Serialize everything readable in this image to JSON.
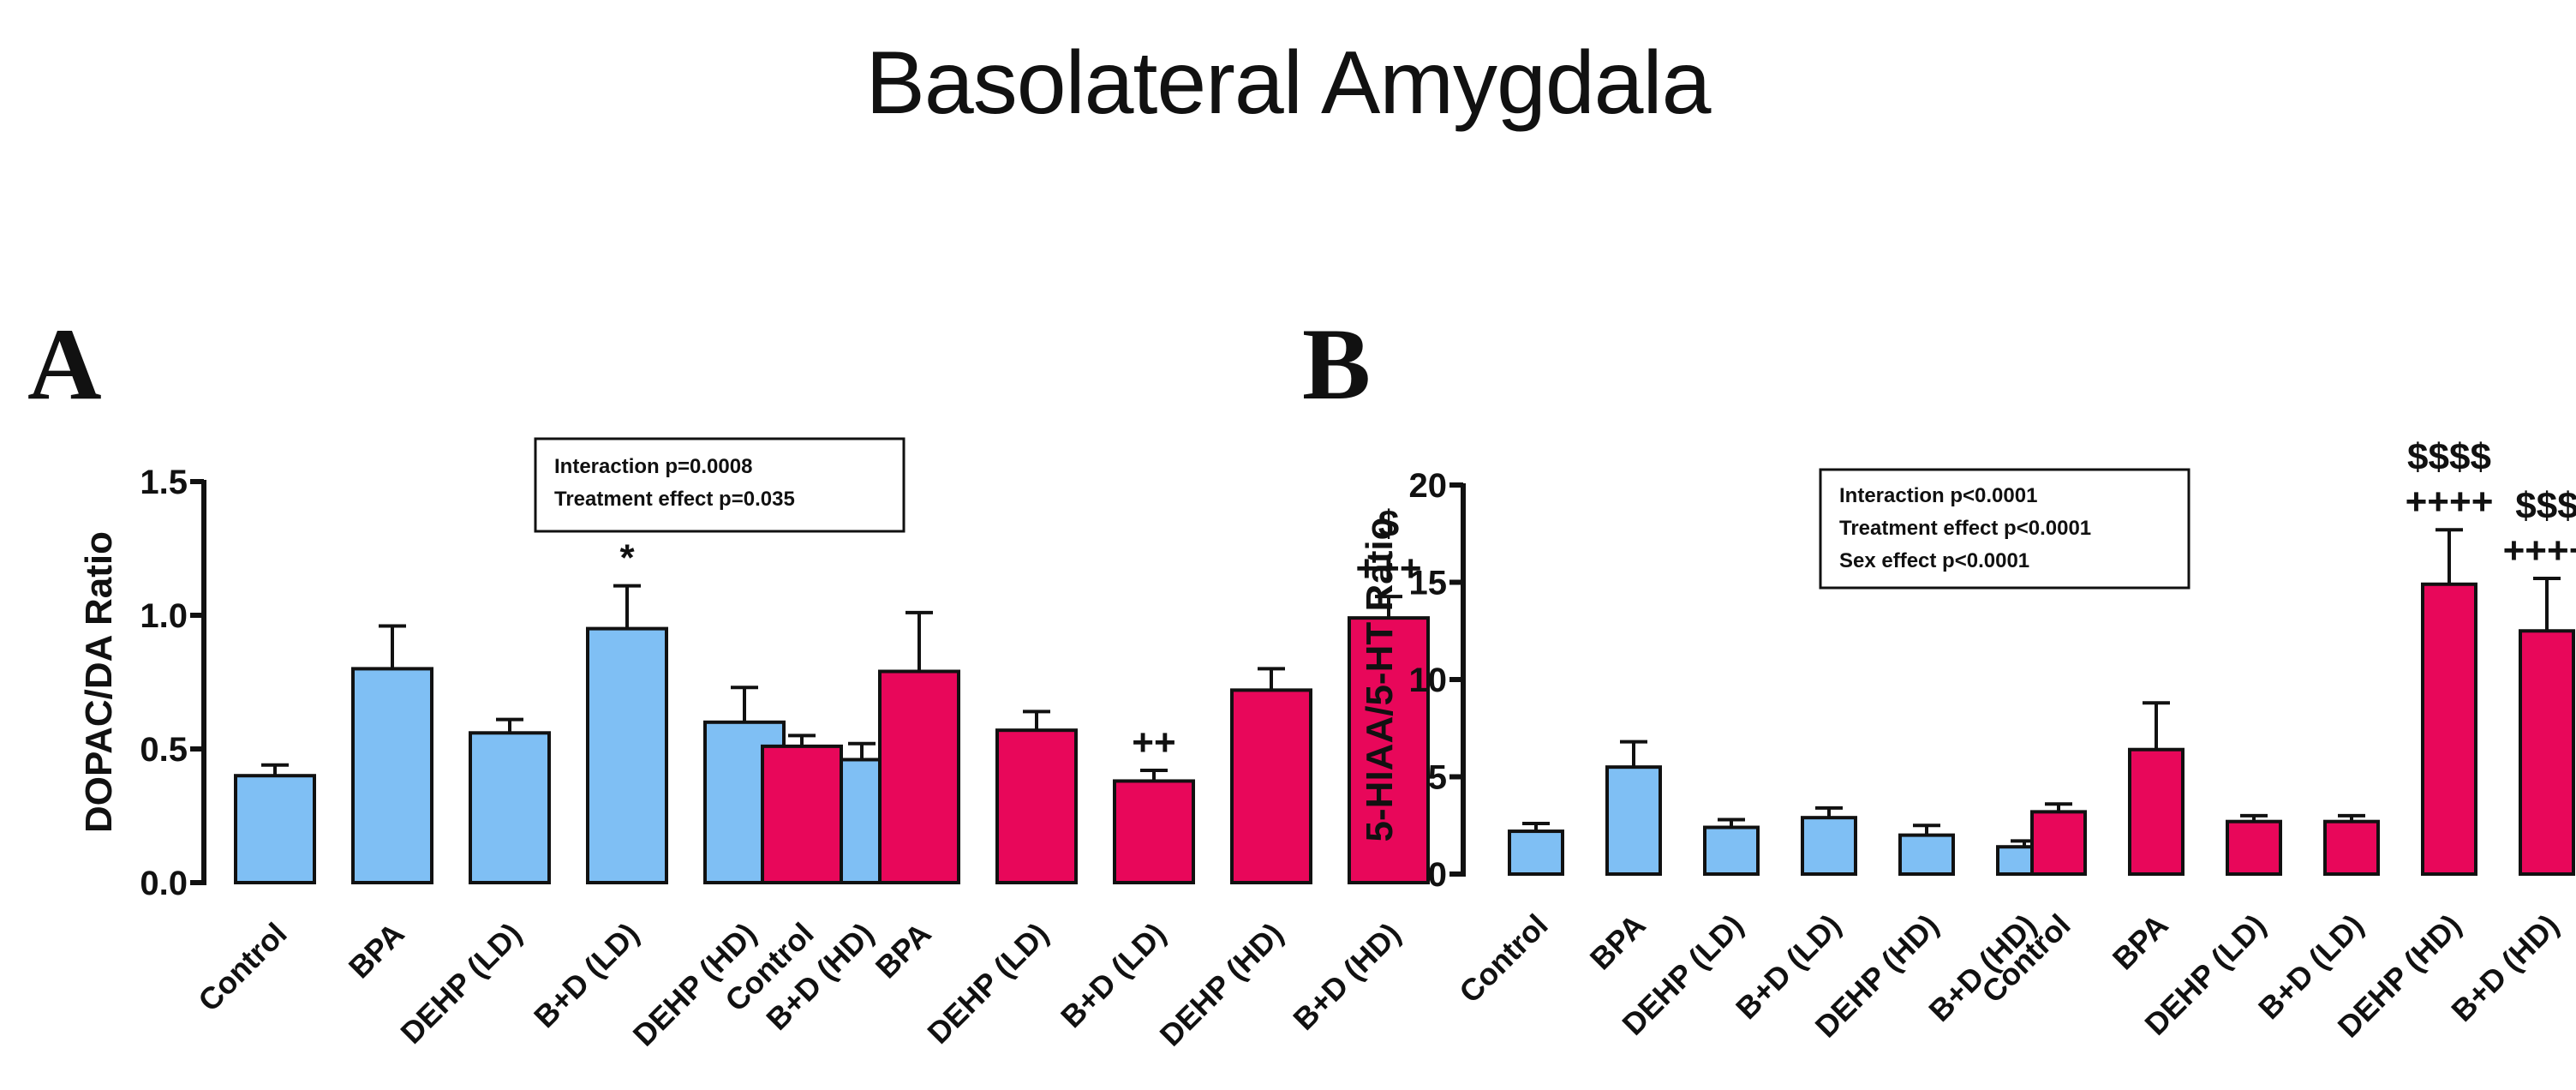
{
  "title": "Basolateral Amygdala",
  "colors": {
    "male": "#7fbff4",
    "female": "#e8075a",
    "axis": "#111111"
  },
  "chart_data": [
    {
      "panel": "A",
      "type": "bar",
      "ylabel": "DOPAC/DA Ratio",
      "ylim": [
        0,
        1.5
      ],
      "yticks": [
        "0.0",
        "0.5",
        "1.0",
        "1.5"
      ],
      "categories": [
        "Control",
        "BPA",
        "DEHP (LD)",
        "B+D (LD)",
        "DEHP (HD)",
        "B+D (HD)"
      ],
      "stats": [
        "Interaction p=0.0008",
        "Treatment effect p=0.035"
      ],
      "series": [
        {
          "name": "male",
          "values": [
            0.4,
            0.8,
            0.56,
            0.95,
            0.6,
            0.46
          ],
          "errors": [
            0.04,
            0.16,
            0.05,
            0.16,
            0.13,
            0.06
          ],
          "annotations": [
            "",
            "",
            "",
            "*",
            "",
            ""
          ]
        },
        {
          "name": "female",
          "values": [
            0.51,
            0.79,
            0.57,
            0.38,
            0.72,
            0.99
          ],
          "errors": [
            0.04,
            0.22,
            0.07,
            0.04,
            0.08,
            0.08
          ],
          "annotations": [
            "",
            "",
            "",
            "++",
            "",
            "$|+++"
          ]
        }
      ]
    },
    {
      "panel": "B",
      "type": "bar",
      "ylabel": "5-HIAA/5-HT Ratio",
      "ylim": [
        0,
        20
      ],
      "yticks": [
        "0",
        "5",
        "10",
        "15",
        "20"
      ],
      "categories": [
        "Control",
        "BPA",
        "DEHP (LD)",
        "B+D (LD)",
        "DEHP (HD)",
        "B+D (HD)"
      ],
      "stats": [
        "Interaction p<0.0001",
        "Treatment effect p<0.0001",
        "Sex effect p<0.0001"
      ],
      "series": [
        {
          "name": "male",
          "values": [
            2.2,
            5.5,
            2.4,
            2.9,
            2.0,
            1.4
          ],
          "errors": [
            0.4,
            1.3,
            0.4,
            0.5,
            0.5,
            0.3
          ],
          "annotations": [
            "",
            "",
            "",
            "",
            "",
            ""
          ]
        },
        {
          "name": "female",
          "values": [
            3.2,
            6.4,
            2.7,
            2.7,
            14.9,
            12.5
          ],
          "errors": [
            0.4,
            2.4,
            0.3,
            0.3,
            2.8,
            2.7
          ],
          "annotations": [
            "",
            "",
            "",
            "",
            "$$$$|++++",
            "$$$|++++"
          ]
        }
      ]
    }
  ]
}
